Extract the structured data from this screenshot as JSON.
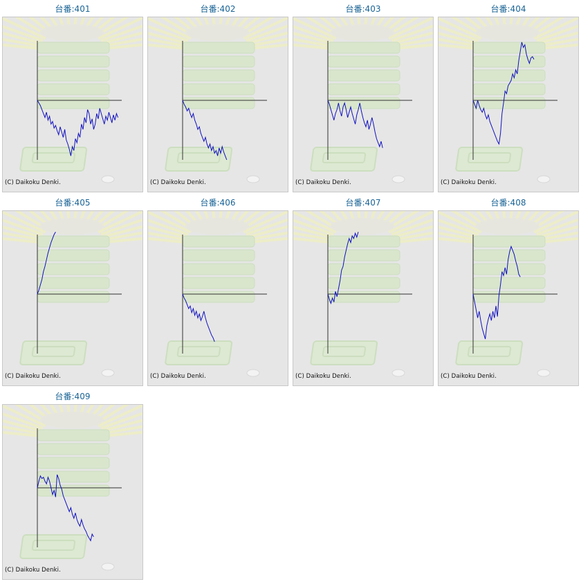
{
  "colors": {
    "title": "#1a6496",
    "line": "#1010c0",
    "axis": "#333333",
    "panel_bg": "#e6e6e6"
  },
  "chart_data": [
    {
      "type": "line",
      "title": "台番:401",
      "copyright": "(C) Daikoku Denki.",
      "values": [
        0,
        -4,
        -8,
        -14,
        -20,
        -26,
        -18,
        -30,
        -24,
        -36,
        -32,
        -42,
        -38,
        -46,
        -52,
        -40,
        -48,
        -56,
        -44,
        -60,
        -66,
        -74,
        -84,
        -70,
        -76,
        -58,
        -64,
        -50,
        -56,
        -36,
        -44,
        -26,
        -34,
        -14,
        -20,
        -36,
        -28,
        -44,
        -36,
        -20,
        -28,
        -12,
        -20,
        -28,
        -36,
        -24,
        -30,
        -18,
        -26,
        -34,
        -22,
        -30,
        -20,
        -26
      ]
    },
    {
      "type": "line",
      "title": "台番:402",
      "copyright": "(C) Daikoku Denki.",
      "values": [
        0,
        -6,
        -10,
        -16,
        -12,
        -20,
        -26,
        -20,
        -30,
        -36,
        -44,
        -40,
        -50,
        -56,
        -62,
        -56,
        -66,
        -72,
        -66,
        -76,
        -70,
        -80,
        -76,
        -84,
        -72,
        -80,
        -70,
        -78,
        -84,
        -90
      ]
    },
    {
      "type": "line",
      "title": "台番:403",
      "copyright": "(C) Daikoku Denki.",
      "values": [
        0,
        -6,
        -14,
        -22,
        -30,
        -20,
        -14,
        -4,
        -16,
        -24,
        -10,
        -4,
        -14,
        -26,
        -18,
        -10,
        -20,
        -28,
        -36,
        -22,
        -14,
        -4,
        -16,
        -26,
        -34,
        -40,
        -30,
        -44,
        -36,
        -26,
        -36,
        -48,
        -58,
        -64,
        -70,
        -62,
        -72
      ]
    },
    {
      "type": "line",
      "title": "台番:404",
      "copyright": "(C) Daikoku Denki.",
      "values": [
        0,
        -6,
        -12,
        0,
        -8,
        -14,
        -18,
        -12,
        -22,
        -28,
        -22,
        -32,
        -38,
        -44,
        -50,
        -56,
        -62,
        -66,
        -50,
        -20,
        -4,
        14,
        10,
        22,
        26,
        30,
        40,
        34,
        46,
        40,
        60,
        74,
        88,
        80,
        84,
        70,
        62,
        56,
        64,
        66,
        62
      ]
    },
    {
      "type": "line",
      "title": "台番:405",
      "copyright": "(C) Daikoku Denki.",
      "values": [
        0,
        6,
        14,
        22,
        34,
        42,
        52,
        62,
        70,
        78,
        84,
        90,
        94
      ]
    },
    {
      "type": "line",
      "title": "台番:406",
      "copyright": "(C) Daikoku Denki.",
      "values": [
        0,
        -6,
        -10,
        -16,
        -22,
        -18,
        -28,
        -22,
        -32,
        -26,
        -36,
        -30,
        -40,
        -34,
        -26,
        -36,
        -44,
        -50,
        -56,
        -62,
        -66,
        -72
      ]
    },
    {
      "type": "line",
      "title": "台番:407",
      "copyright": "(C) Daikoku Denki.",
      "values": [
        0,
        -8,
        -14,
        -6,
        -12,
        4,
        -4,
        8,
        20,
        36,
        42,
        56,
        66,
        76,
        84,
        78,
        88,
        84,
        92,
        86,
        94
      ]
    },
    {
      "type": "line",
      "title": "台番:408",
      "copyright": "(C) Daikoku Denki.",
      "values": [
        0,
        -12,
        -24,
        -36,
        -26,
        -40,
        -52,
        -60,
        -68,
        -48,
        -38,
        -30,
        -40,
        -26,
        -36,
        -18,
        -34,
        -2,
        14,
        34,
        28,
        40,
        30,
        52,
        64,
        72,
        66,
        60,
        50,
        42,
        30,
        26
      ]
    },
    {
      "type": "line",
      "title": "台番:409",
      "copyright": "(C) Daikoku Denki.",
      "values": [
        0,
        10,
        18,
        14,
        16,
        10,
        6,
        16,
        10,
        0,
        -10,
        -4,
        -14,
        20,
        14,
        4,
        -2,
        -12,
        -18,
        -24,
        -30,
        -36,
        -30,
        -40,
        -46,
        -38,
        -48,
        -54,
        -58,
        -48,
        -56,
        -62,
        -66,
        -72,
        -76,
        -80,
        -70,
        -74
      ]
    }
  ]
}
